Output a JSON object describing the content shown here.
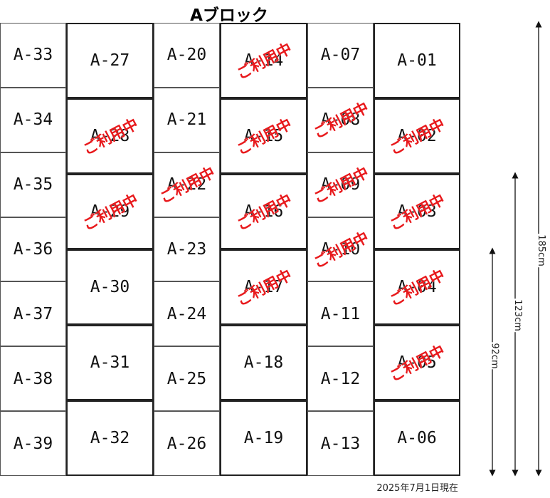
{
  "title": "Aブロック",
  "in_use_label": "ご利用中",
  "as_of": "2025年7月1日現在",
  "stamp_color": "#e8191c",
  "columns": [
    {
      "type": "short",
      "lockers": [
        {
          "id": "A-33",
          "in_use": false
        },
        {
          "id": "A-34",
          "in_use": false
        },
        {
          "id": "A-35",
          "in_use": false
        },
        {
          "id": "A-36",
          "in_use": false
        },
        {
          "id": "A-37",
          "in_use": false
        },
        {
          "id": "A-38",
          "in_use": false
        },
        {
          "id": "A-39",
          "in_use": false
        }
      ]
    },
    {
      "type": "tall",
      "lockers": [
        {
          "id": "A-27",
          "in_use": false
        },
        {
          "id": "A-28",
          "in_use": true
        },
        {
          "id": "A-29",
          "in_use": true
        },
        {
          "id": "A-30",
          "in_use": false
        },
        {
          "id": "A-31",
          "in_use": false
        },
        {
          "id": "A-32",
          "in_use": false
        }
      ]
    },
    {
      "type": "short",
      "lockers": [
        {
          "id": "A-20",
          "in_use": false
        },
        {
          "id": "A-21",
          "in_use": false
        },
        {
          "id": "A-22",
          "in_use": true
        },
        {
          "id": "A-23",
          "in_use": false
        },
        {
          "id": "A-24",
          "in_use": false
        },
        {
          "id": "A-25",
          "in_use": false
        },
        {
          "id": "A-26",
          "in_use": false
        }
      ]
    },
    {
      "type": "tall",
      "lockers": [
        {
          "id": "A-14",
          "in_use": true
        },
        {
          "id": "A-15",
          "in_use": true
        },
        {
          "id": "A-16",
          "in_use": true
        },
        {
          "id": "A-17",
          "in_use": true
        },
        {
          "id": "A-18",
          "in_use": false
        },
        {
          "id": "A-19",
          "in_use": false
        }
      ]
    },
    {
      "type": "short",
      "lockers": [
        {
          "id": "A-07",
          "in_use": false
        },
        {
          "id": "A-08",
          "in_use": true
        },
        {
          "id": "A-09",
          "in_use": true
        },
        {
          "id": "A-10",
          "in_use": true
        },
        {
          "id": "A-11",
          "in_use": false
        },
        {
          "id": "A-12",
          "in_use": false
        },
        {
          "id": "A-13",
          "in_use": false
        }
      ]
    },
    {
      "type": "tall",
      "lockers": [
        {
          "id": "A-01",
          "in_use": false
        },
        {
          "id": "A-02",
          "in_use": true
        },
        {
          "id": "A-03",
          "in_use": true
        },
        {
          "id": "A-04",
          "in_use": true
        },
        {
          "id": "A-05",
          "in_use": true
        },
        {
          "id": "A-06",
          "in_use": false
        }
      ]
    }
  ],
  "dimensions": [
    {
      "label": "185cm"
    },
    {
      "label": "123cm"
    },
    {
      "label": "92cm"
    }
  ]
}
